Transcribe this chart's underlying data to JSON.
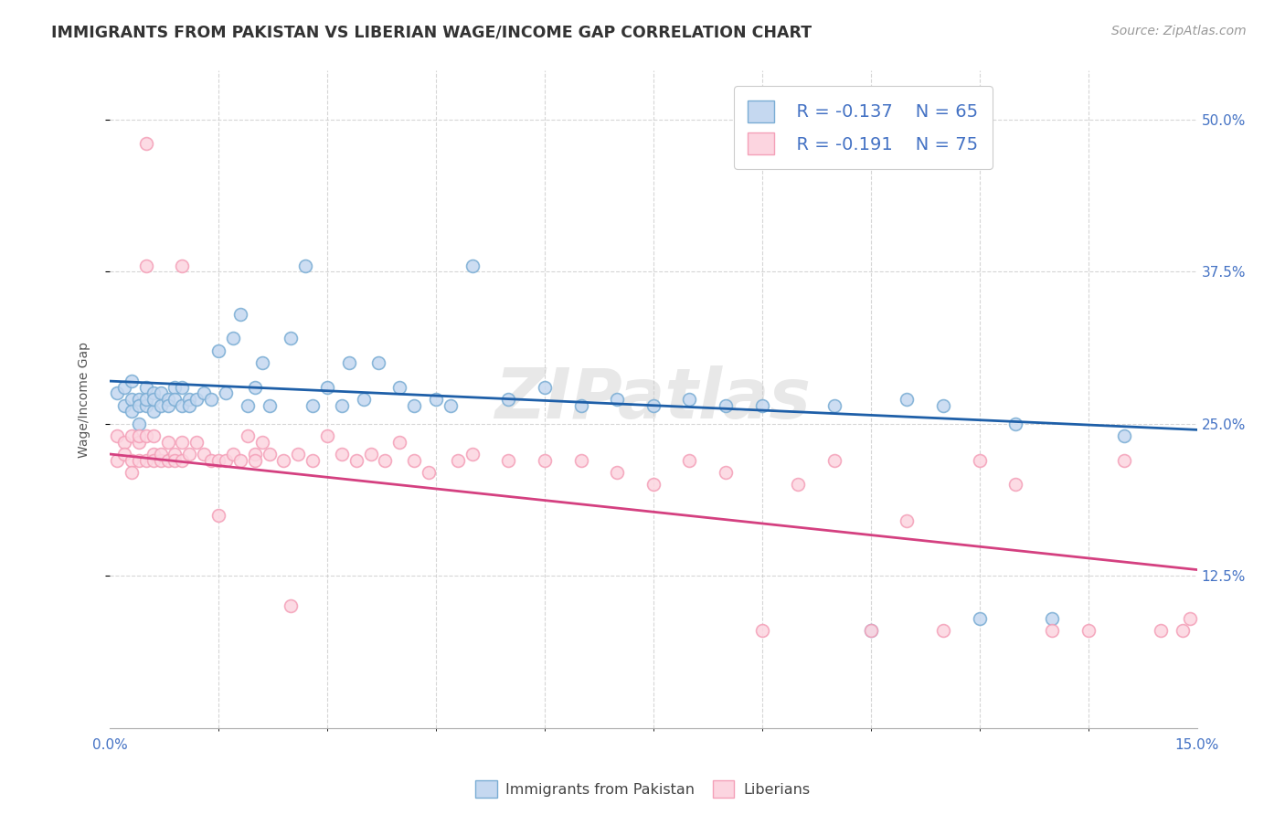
{
  "title": "IMMIGRANTS FROM PAKISTAN VS LIBERIAN WAGE/INCOME GAP CORRELATION CHART",
  "source": "Source: ZipAtlas.com",
  "ylabel": "Wage/Income Gap",
  "yticks_labels": [
    "12.5%",
    "25.0%",
    "37.5%",
    "50.0%"
  ],
  "ytick_vals": [
    0.125,
    0.25,
    0.375,
    0.5
  ],
  "xmin": 0.0,
  "xmax": 0.15,
  "ymin": 0.0,
  "ymax": 0.54,
  "legend1_R": "R = -0.137",
  "legend1_N": "N = 65",
  "legend2_R": "R = -0.191",
  "legend2_N": "N = 75",
  "blue_marker_face": "#c5d8f0",
  "blue_marker_edge": "#7aadd4",
  "pink_marker_face": "#fcd5e0",
  "pink_marker_edge": "#f4a0b8",
  "blue_legend_face": "#c5d8f0",
  "blue_legend_edge": "#7aadd4",
  "pink_legend_face": "#fcd5e0",
  "pink_legend_edge": "#f4a0b8",
  "line_blue": "#1e5fa8",
  "line_pink": "#d44080",
  "watermark": "ZIPatlas",
  "legend_label1": "Immigrants from Pakistan",
  "legend_label2": "Liberians",
  "legend_text_color": "#4472C4",
  "tick_color": "#4472C4",
  "grid_color": "#cccccc",
  "title_color": "#333333",
  "source_color": "#999999",
  "ylabel_color": "#555555",
  "pakistan_x": [
    0.001,
    0.002,
    0.002,
    0.003,
    0.003,
    0.003,
    0.004,
    0.004,
    0.004,
    0.005,
    0.005,
    0.005,
    0.006,
    0.006,
    0.006,
    0.007,
    0.007,
    0.008,
    0.008,
    0.009,
    0.009,
    0.01,
    0.01,
    0.011,
    0.011,
    0.012,
    0.013,
    0.014,
    0.015,
    0.016,
    0.017,
    0.018,
    0.019,
    0.02,
    0.021,
    0.022,
    0.025,
    0.027,
    0.028,
    0.03,
    0.032,
    0.033,
    0.035,
    0.037,
    0.04,
    0.042,
    0.045,
    0.047,
    0.05,
    0.055,
    0.06,
    0.065,
    0.07,
    0.075,
    0.08,
    0.085,
    0.09,
    0.1,
    0.105,
    0.11,
    0.115,
    0.12,
    0.125,
    0.13,
    0.14
  ],
  "pakistan_y": [
    0.275,
    0.28,
    0.265,
    0.27,
    0.26,
    0.285,
    0.27,
    0.265,
    0.25,
    0.28,
    0.265,
    0.27,
    0.275,
    0.26,
    0.27,
    0.265,
    0.275,
    0.27,
    0.265,
    0.28,
    0.27,
    0.265,
    0.28,
    0.27,
    0.265,
    0.27,
    0.275,
    0.27,
    0.31,
    0.275,
    0.32,
    0.34,
    0.265,
    0.28,
    0.3,
    0.265,
    0.32,
    0.38,
    0.265,
    0.28,
    0.265,
    0.3,
    0.27,
    0.3,
    0.28,
    0.265,
    0.27,
    0.265,
    0.38,
    0.27,
    0.28,
    0.265,
    0.27,
    0.265,
    0.27,
    0.265,
    0.265,
    0.265,
    0.08,
    0.27,
    0.265,
    0.09,
    0.25,
    0.09,
    0.24
  ],
  "liberian_x": [
    0.001,
    0.001,
    0.002,
    0.002,
    0.003,
    0.003,
    0.003,
    0.004,
    0.004,
    0.004,
    0.005,
    0.005,
    0.005,
    0.006,
    0.006,
    0.006,
    0.007,
    0.007,
    0.008,
    0.008,
    0.009,
    0.009,
    0.01,
    0.01,
    0.011,
    0.012,
    0.013,
    0.014,
    0.015,
    0.016,
    0.017,
    0.018,
    0.019,
    0.02,
    0.021,
    0.022,
    0.024,
    0.026,
    0.028,
    0.03,
    0.032,
    0.034,
    0.036,
    0.038,
    0.04,
    0.042,
    0.044,
    0.048,
    0.05,
    0.055,
    0.06,
    0.065,
    0.07,
    0.075,
    0.08,
    0.085,
    0.09,
    0.095,
    0.1,
    0.105,
    0.11,
    0.115,
    0.12,
    0.125,
    0.13,
    0.135,
    0.14,
    0.145,
    0.148,
    0.149,
    0.005,
    0.01,
    0.015,
    0.02,
    0.025
  ],
  "liberian_y": [
    0.24,
    0.22,
    0.235,
    0.225,
    0.24,
    0.22,
    0.21,
    0.235,
    0.22,
    0.24,
    0.22,
    0.48,
    0.24,
    0.225,
    0.22,
    0.24,
    0.22,
    0.225,
    0.235,
    0.22,
    0.225,
    0.22,
    0.235,
    0.22,
    0.225,
    0.235,
    0.225,
    0.22,
    0.22,
    0.22,
    0.225,
    0.22,
    0.24,
    0.225,
    0.235,
    0.225,
    0.22,
    0.225,
    0.22,
    0.24,
    0.225,
    0.22,
    0.225,
    0.22,
    0.235,
    0.22,
    0.21,
    0.22,
    0.225,
    0.22,
    0.22,
    0.22,
    0.21,
    0.2,
    0.22,
    0.21,
    0.08,
    0.2,
    0.22,
    0.08,
    0.17,
    0.08,
    0.22,
    0.2,
    0.08,
    0.08,
    0.22,
    0.08,
    0.08,
    0.09,
    0.38,
    0.38,
    0.175,
    0.22,
    0.1
  ]
}
